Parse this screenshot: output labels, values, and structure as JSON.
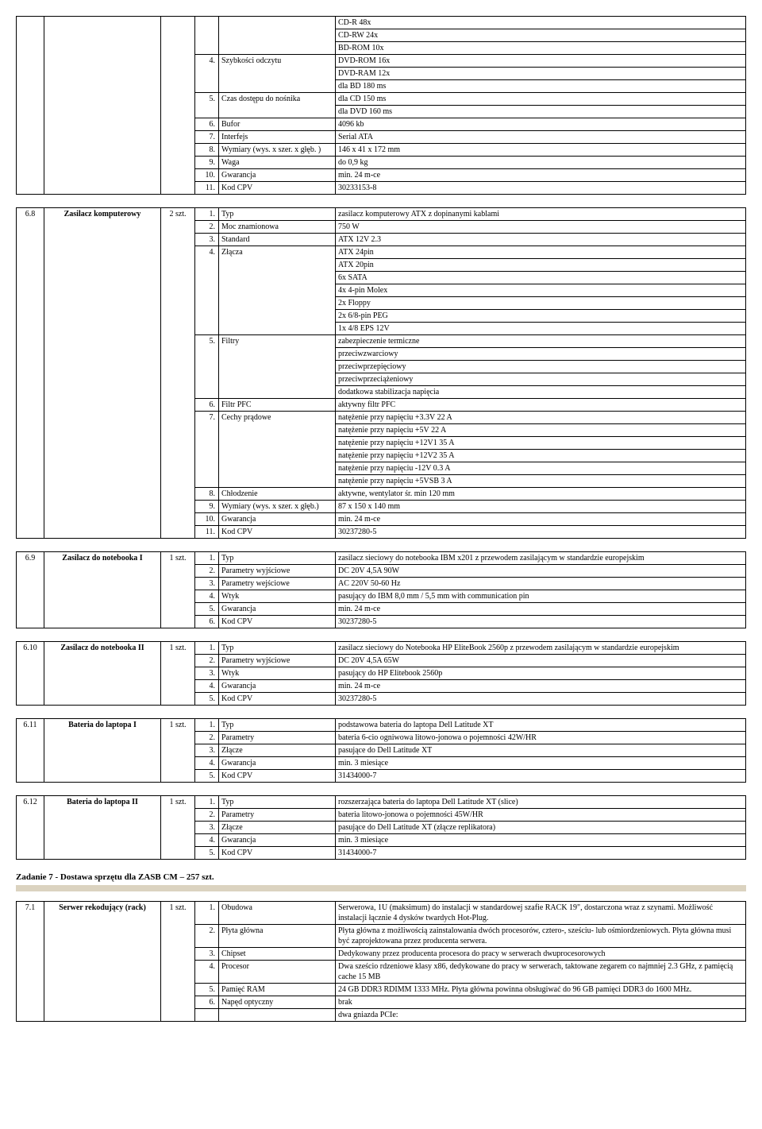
{
  "topTable": {
    "specs": [
      {
        "num": "",
        "key": "",
        "values": [
          "CD-R 48x",
          "CD-RW 24x",
          "BD-ROM 10x"
        ]
      },
      {
        "num": "4.",
        "key": "Szybkości odczytu",
        "values": [
          "DVD-ROM 16x",
          "DVD-RAM 12x",
          "dla BD 180 ms"
        ]
      },
      {
        "num": "5.",
        "key": "Czas dostępu do nośnika",
        "values": [
          "dla CD 150 ms",
          "dla DVD 160 ms"
        ]
      },
      {
        "num": "6.",
        "key": "Bufor",
        "values": [
          "4096 kb"
        ]
      },
      {
        "num": "7.",
        "key": "Interfejs",
        "values": [
          "Serial ATA"
        ]
      },
      {
        "num": "8.",
        "key": "Wymiary (wys. x szer. x głęb. )",
        "values": [
          "146 x 41 x 172 mm"
        ]
      },
      {
        "num": "9.",
        "key": "Waga",
        "values": [
          "do 0,9 kg"
        ]
      },
      {
        "num": "10.",
        "key": "Gwarancja",
        "values": [
          "min. 24 m-ce"
        ]
      },
      {
        "num": "11.",
        "key": "Kod CPV",
        "values": [
          "30233153-8"
        ]
      }
    ]
  },
  "items": [
    {
      "id": "6.8",
      "name": "Zasilacz komputerowy",
      "qty": "2 szt.",
      "specs": [
        {
          "num": "1.",
          "key": "Typ",
          "values": [
            "zasilacz komputerowy ATX z dopinanymi kablami"
          ]
        },
        {
          "num": "2.",
          "key": "Moc znamionowa",
          "values": [
            "750 W"
          ]
        },
        {
          "num": "3.",
          "key": "Standard",
          "values": [
            "ATX 12V 2.3"
          ]
        },
        {
          "num": "4.",
          "key": "Złącza",
          "values": [
            "ATX 24pin",
            "ATX 20pin",
            "6x SATA",
            "4x 4-pin Molex",
            "2x Floppy",
            "2x 6/8-pin PEG",
            "1x 4/8 EPS 12V"
          ]
        },
        {
          "num": "5.",
          "key": "Filtry",
          "values": [
            "zabezpieczenie termiczne",
            "przeciwzwarciowy",
            "przeciwprzepięciowy",
            "przeciwprzeciążeniowy",
            "dodatkowa stabilizacja napięcia"
          ]
        },
        {
          "num": "6.",
          "key": "Filtr PFC",
          "values": [
            "aktywny filtr PFC"
          ]
        },
        {
          "num": "7.",
          "key": "Cechy prądowe",
          "values": [
            "natężenie przy napięciu +3.3V 22 A",
            "natężenie przy napięciu +5V 22 A",
            "natężenie przy napięciu +12V1 35 A",
            "natężenie przy napięciu +12V2 35 A",
            "natężenie przy napięciu -12V 0.3 A",
            "natężenie przy napięciu +5VSB 3 A"
          ]
        },
        {
          "num": "8.",
          "key": "Chłodzenie",
          "values": [
            "aktywne, wentylator śr. min 120 mm"
          ]
        },
        {
          "num": "9.",
          "key": "Wymiary (wys. x szer. x głęb.)",
          "values": [
            "87 x 150 x 140 mm"
          ]
        },
        {
          "num": "10.",
          "key": "Gwarancja",
          "values": [
            "min. 24 m-ce"
          ]
        },
        {
          "num": "11.",
          "key": "Kod CPV",
          "values": [
            "30237280-5"
          ]
        }
      ]
    },
    {
      "id": "6.9",
      "name": "Zasilacz do notebooka I",
      "qty": "1 szt.",
      "specs": [
        {
          "num": "1.",
          "key": "Typ",
          "values": [
            "zasilacz sieciowy do notebooka IBM x201 z przewodem zasilającym w standardzie europejskim"
          ]
        },
        {
          "num": "2.",
          "key": "Parametry wyjściowe",
          "values": [
            "DC 20V 4,5A 90W"
          ]
        },
        {
          "num": "3.",
          "key": "Parametry wejściowe",
          "values": [
            "AC 220V 50-60 Hz"
          ]
        },
        {
          "num": "4.",
          "key": "Wtyk",
          "values": [
            "pasujący do IBM 8,0 mm / 5,5 mm with communication pin"
          ]
        },
        {
          "num": "5.",
          "key": "Gwarancja",
          "values": [
            "min. 24 m-ce"
          ]
        },
        {
          "num": "6.",
          "key": "Kod CPV",
          "values": [
            "30237280-5"
          ]
        }
      ]
    },
    {
      "id": "6.10",
      "name": "Zasilacz do notebooka II",
      "qty": "1 szt.",
      "specs": [
        {
          "num": "1.",
          "key": "Typ",
          "values": [
            "zasilacz sieciowy do Notebooka HP EliteBook 2560p z przewodem zasilającym w standardzie europejskim"
          ]
        },
        {
          "num": "2.",
          "key": "Parametry wyjściowe",
          "values": [
            "DC 20V 4,5A 65W"
          ]
        },
        {
          "num": "3.",
          "key": "Wtyk",
          "values": [
            "pasujący do HP Elitebook 2560p"
          ]
        },
        {
          "num": "4.",
          "key": "Gwarancja",
          "values": [
            "min. 24 m-ce"
          ]
        },
        {
          "num": "5.",
          "key": "Kod CPV",
          "values": [
            "30237280-5"
          ]
        }
      ]
    },
    {
      "id": "6.11",
      "name": "Bateria do laptopa I",
      "qty": "1 szt.",
      "specs": [
        {
          "num": "1.",
          "key": "Typ",
          "values": [
            "podstawowa bateria do laptopa Dell Latitude XT"
          ]
        },
        {
          "num": "2.",
          "key": "Parametry",
          "values": [
            "bateria 6-cio ogniwowa litowo-jonowa o pojemności 42W/HR"
          ]
        },
        {
          "num": "3.",
          "key": "Złącze",
          "values": [
            "pasujące do Dell Latitude XT"
          ]
        },
        {
          "num": "4.",
          "key": "Gwarancja",
          "values": [
            "min. 3 miesiące"
          ]
        },
        {
          "num": "5.",
          "key": "Kod CPV",
          "values": [
            "31434000-7"
          ]
        }
      ]
    },
    {
      "id": "6.12",
      "name": "Bateria do laptopa II",
      "qty": "1 szt.",
      "specs": [
        {
          "num": "1.",
          "key": "Typ",
          "values": [
            "rozszerzająca bateria do laptopa Dell Latitude XT (slice)"
          ]
        },
        {
          "num": "2.",
          "key": "Parametry",
          "values": [
            "bateria litowo-jonowa o pojemności 45W/HR"
          ]
        },
        {
          "num": "3.",
          "key": "Złącze",
          "values": [
            "pasujące do Dell Latitude XT (złącze replikatora)"
          ]
        },
        {
          "num": "4.",
          "key": "Gwarancja",
          "values": [
            "min. 3 miesiące"
          ]
        },
        {
          "num": "5.",
          "key": "Kod CPV",
          "values": [
            "31434000-7"
          ]
        }
      ]
    }
  ],
  "section7": {
    "title": "Zadanie 7 - Dostawa sprzętu dla ZASB CM – 257 szt.",
    "item": {
      "id": "7.1",
      "name": "Serwer rekodujący (rack)",
      "qty": "1 szt.",
      "specs": [
        {
          "num": "1.",
          "key": "Obudowa",
          "values": [
            "Serwerowa, 1U (maksimum) do instalacji w standardowej szafie RACK 19\", dostarczona wraz z szynami. Możliwość instalacji łącznie 4 dysków twardych Hot-Plug."
          ]
        },
        {
          "num": "2.",
          "key": "Płyta główna",
          "values": [
            "Płyta główna z możliwością zainstalowania dwóch procesorów, cztero-, sześciu- lub ośmiordzeniowych. Płyta główna musi być zaprojektowana przez producenta serwera."
          ]
        },
        {
          "num": "3.",
          "key": "Chipset",
          "values": [
            "Dedykowany przez producenta procesora do pracy w serwerach dwuprocesorowych"
          ]
        },
        {
          "num": "4.",
          "key": "Procesor",
          "values": [
            "Dwa sześcio rdzeniowe klasy x86, dedykowane do pracy w serwerach, taktowane zegarem co najmniej 2.3 GHz, z pamięcią cache 15 MB"
          ]
        },
        {
          "num": "5.",
          "key": "Pamięć RAM",
          "values": [
            "24 GB DDR3 RDIMM 1333 MHz. Płyta główna powinna obsługiwać do 96 GB pamięci DDR3 do 1600 MHz."
          ]
        },
        {
          "num": "6.",
          "key": "Napęd optyczny",
          "values": [
            "brak"
          ]
        },
        {
          "num": "",
          "key": "",
          "values": [
            "dwa gniazda PCIe:"
          ]
        }
      ]
    }
  }
}
